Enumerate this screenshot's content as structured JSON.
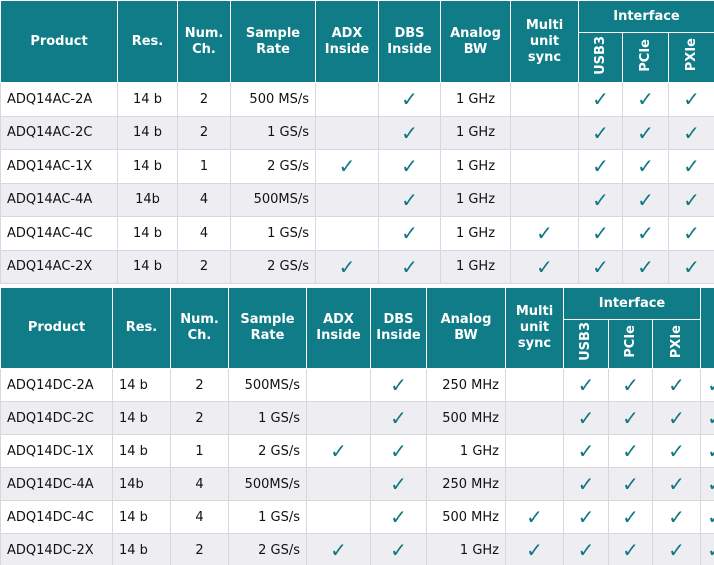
{
  "tables": [
    {
      "header": {
        "columns": [
          "Product",
          "Res.",
          "Num.\nCh.",
          "Sample\nRate",
          "ADX\nInside",
          "DBS\nInside",
          "Analog\nBW",
          "Multi\nunit\nsync"
        ],
        "group": "Interface",
        "sub": [
          "USB3",
          "PCIe",
          "PXIe"
        ]
      },
      "rows": [
        [
          "ADQ14AC-2A",
          "14 b",
          "2",
          "500 MS/s",
          null,
          "✓",
          "1 GHz",
          null,
          "✓",
          "✓",
          "✓"
        ],
        [
          "ADQ14AC-2C",
          "14 b",
          "2",
          "1 GS/s",
          null,
          "✓",
          "1 GHz",
          null,
          "✓",
          "✓",
          "✓"
        ],
        [
          "ADQ14AC-1X",
          "14 b",
          "1",
          "2 GS/s",
          "✓",
          "✓",
          "1 GHz",
          null,
          "✓",
          "✓",
          "✓"
        ],
        [
          "ADQ14AC-4A",
          "14b",
          "4",
          "500MS/s",
          null,
          "✓",
          "1 GHz",
          null,
          "✓",
          "✓",
          "✓"
        ],
        [
          "ADQ14AC-4C",
          "14 b",
          "4",
          "1 GS/s",
          null,
          "✓",
          "1 GHz",
          "✓",
          "✓",
          "✓",
          "✓"
        ],
        [
          "ADQ14AC-2X",
          "14 b",
          "2",
          "2 GS/s",
          "✓",
          "✓",
          "1 GHz",
          "✓",
          "✓",
          "✓",
          "✓"
        ]
      ]
    },
    {
      "header": {
        "columns": [
          "Product",
          "Res.",
          "Num.\nCh.",
          "Sample\nRate",
          "ADX\nInside",
          "DBS\nInside",
          "Analog\nBW",
          "Multi\nunit\nsync"
        ],
        "group": "Interface",
        "sub": [
          "USB3",
          "PCIe",
          "PXIe"
        ]
      },
      "rows": [
        [
          "ADQ14DC-2A",
          "14 b",
          "2",
          "500MS/s",
          null,
          "✓",
          "250 MHz",
          null,
          "✓",
          "✓",
          "✓",
          "✓"
        ],
        [
          "ADQ14DC-2C",
          "14 b",
          "2",
          "1 GS/s",
          null,
          "✓",
          "500 MHz",
          null,
          "✓",
          "✓",
          "✓",
          "✓"
        ],
        [
          "ADQ14DC-1X",
          "14 b",
          "1",
          "2 GS/s",
          "✓",
          "✓",
          "1 GHz",
          null,
          "✓",
          "✓",
          "✓",
          "✓"
        ],
        [
          "ADQ14DC-4A",
          "14b",
          "4",
          "500MS/s",
          null,
          "✓",
          "250 MHz",
          null,
          "✓",
          "✓",
          "✓",
          "✓"
        ],
        [
          "ADQ14DC-4C",
          "14 b",
          "4",
          "1 GS/s",
          null,
          "✓",
          "500 MHz",
          "✓",
          "✓",
          "✓",
          "✓",
          "✓"
        ],
        [
          "ADQ14DC-2X",
          "14 b",
          "2",
          "2 GS/s",
          "✓",
          "✓",
          "1 GHz",
          "✓",
          "✓",
          "✓",
          "✓",
          "✓"
        ]
      ]
    }
  ]
}
